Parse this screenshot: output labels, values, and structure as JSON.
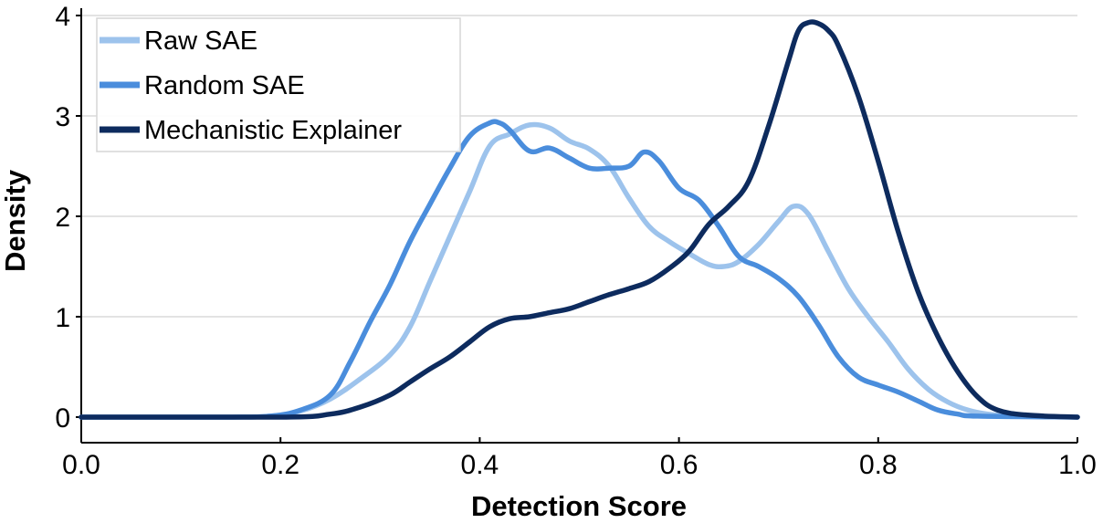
{
  "chart_data": {
    "type": "line",
    "title": "",
    "xlabel": "Detection Score",
    "ylabel": "Density",
    "xlim": [
      0.0,
      1.0
    ],
    "ylim": [
      0,
      4.0
    ],
    "xticks": [
      "0.0",
      "0.2",
      "0.4",
      "0.6",
      "0.8",
      "1.0"
    ],
    "yticks": [
      "0",
      "1",
      "2",
      "3",
      "4"
    ],
    "grid": "horizontal",
    "legend": "top-left",
    "series": [
      {
        "name": "Raw SAE",
        "color": "#9dc3ec",
        "points": [
          [
            0.0,
            0.0
          ],
          [
            0.15,
            0.0
          ],
          [
            0.19,
            0.01
          ],
          [
            0.22,
            0.06
          ],
          [
            0.25,
            0.18
          ],
          [
            0.28,
            0.38
          ],
          [
            0.31,
            0.62
          ],
          [
            0.33,
            0.9
          ],
          [
            0.35,
            1.35
          ],
          [
            0.37,
            1.8
          ],
          [
            0.39,
            2.25
          ],
          [
            0.41,
            2.7
          ],
          [
            0.43,
            2.82
          ],
          [
            0.45,
            2.91
          ],
          [
            0.47,
            2.88
          ],
          [
            0.49,
            2.75
          ],
          [
            0.51,
            2.67
          ],
          [
            0.53,
            2.5
          ],
          [
            0.55,
            2.18
          ],
          [
            0.57,
            1.9
          ],
          [
            0.59,
            1.75
          ],
          [
            0.61,
            1.63
          ],
          [
            0.63,
            1.52
          ],
          [
            0.645,
            1.5
          ],
          [
            0.66,
            1.55
          ],
          [
            0.68,
            1.72
          ],
          [
            0.7,
            1.95
          ],
          [
            0.715,
            2.1
          ],
          [
            0.73,
            2.02
          ],
          [
            0.75,
            1.65
          ],
          [
            0.77,
            1.28
          ],
          [
            0.79,
            1.0
          ],
          [
            0.81,
            0.75
          ],
          [
            0.83,
            0.48
          ],
          [
            0.85,
            0.28
          ],
          [
            0.87,
            0.15
          ],
          [
            0.89,
            0.07
          ],
          [
            0.91,
            0.03
          ],
          [
            0.94,
            0.01
          ],
          [
            1.0,
            0.0
          ]
        ]
      },
      {
        "name": "Random SAE",
        "color": "#4a8ddc",
        "points": [
          [
            0.0,
            0.0
          ],
          [
            0.15,
            0.0
          ],
          [
            0.19,
            0.01
          ],
          [
            0.22,
            0.07
          ],
          [
            0.25,
            0.22
          ],
          [
            0.27,
            0.55
          ],
          [
            0.29,
            0.95
          ],
          [
            0.31,
            1.32
          ],
          [
            0.33,
            1.75
          ],
          [
            0.35,
            2.12
          ],
          [
            0.37,
            2.48
          ],
          [
            0.39,
            2.8
          ],
          [
            0.41,
            2.93
          ],
          [
            0.42,
            2.93
          ],
          [
            0.43,
            2.86
          ],
          [
            0.45,
            2.65
          ],
          [
            0.47,
            2.68
          ],
          [
            0.49,
            2.58
          ],
          [
            0.51,
            2.48
          ],
          [
            0.53,
            2.48
          ],
          [
            0.55,
            2.5
          ],
          [
            0.565,
            2.64
          ],
          [
            0.58,
            2.55
          ],
          [
            0.6,
            2.28
          ],
          [
            0.62,
            2.16
          ],
          [
            0.64,
            1.9
          ],
          [
            0.66,
            1.6
          ],
          [
            0.68,
            1.5
          ],
          [
            0.7,
            1.38
          ],
          [
            0.72,
            1.2
          ],
          [
            0.74,
            0.92
          ],
          [
            0.76,
            0.6
          ],
          [
            0.78,
            0.4
          ],
          [
            0.8,
            0.32
          ],
          [
            0.82,
            0.25
          ],
          [
            0.84,
            0.16
          ],
          [
            0.86,
            0.07
          ],
          [
            0.88,
            0.03
          ],
          [
            0.9,
            0.01
          ],
          [
            1.0,
            0.0
          ]
        ]
      },
      {
        "name": "Mechanistic Explainer",
        "color": "#0d2b5e",
        "points": [
          [
            0.0,
            0.0
          ],
          [
            0.2,
            0.0
          ],
          [
            0.25,
            0.03
          ],
          [
            0.28,
            0.1
          ],
          [
            0.31,
            0.22
          ],
          [
            0.33,
            0.35
          ],
          [
            0.35,
            0.48
          ],
          [
            0.37,
            0.6
          ],
          [
            0.39,
            0.75
          ],
          [
            0.41,
            0.9
          ],
          [
            0.43,
            0.98
          ],
          [
            0.45,
            1.0
          ],
          [
            0.47,
            1.04
          ],
          [
            0.49,
            1.08
          ],
          [
            0.51,
            1.15
          ],
          [
            0.53,
            1.22
          ],
          [
            0.55,
            1.28
          ],
          [
            0.57,
            1.35
          ],
          [
            0.59,
            1.48
          ],
          [
            0.61,
            1.65
          ],
          [
            0.63,
            1.92
          ],
          [
            0.65,
            2.1
          ],
          [
            0.67,
            2.35
          ],
          [
            0.69,
            2.9
          ],
          [
            0.71,
            3.55
          ],
          [
            0.72,
            3.85
          ],
          [
            0.73,
            3.93
          ],
          [
            0.74,
            3.92
          ],
          [
            0.75,
            3.85
          ],
          [
            0.76,
            3.7
          ],
          [
            0.78,
            3.2
          ],
          [
            0.8,
            2.55
          ],
          [
            0.82,
            1.85
          ],
          [
            0.84,
            1.25
          ],
          [
            0.86,
            0.8
          ],
          [
            0.88,
            0.45
          ],
          [
            0.9,
            0.2
          ],
          [
            0.92,
            0.07
          ],
          [
            0.95,
            0.02
          ],
          [
            1.0,
            0.0
          ]
        ]
      }
    ]
  }
}
